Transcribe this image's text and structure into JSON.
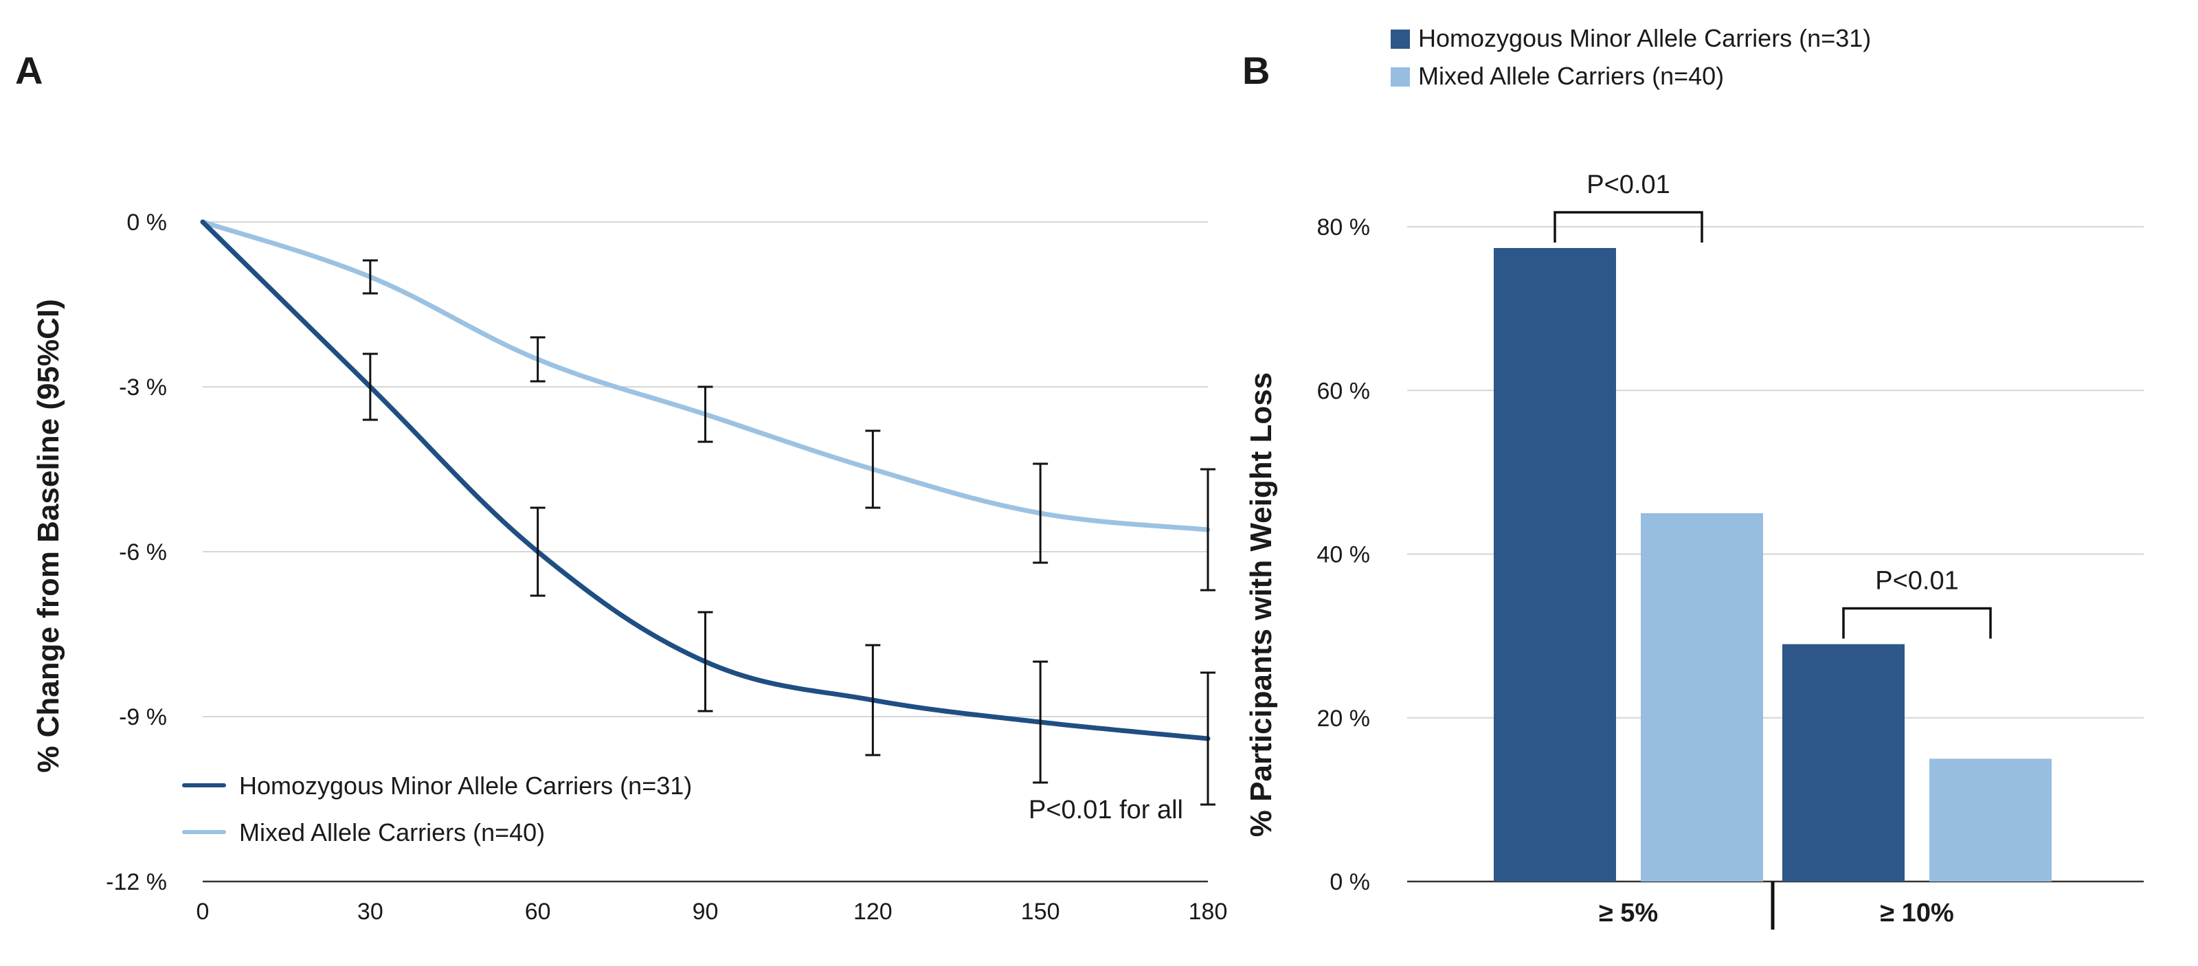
{
  "chart_data": [
    {
      "panel": "A",
      "type": "line",
      "ylabel": "% Change from Baseline (95%CI)",
      "xlabel": "",
      "x": [
        0,
        30,
        60,
        90,
        120,
        150,
        180
      ],
      "x_ticks": [
        "0",
        "30",
        "60",
        "90",
        "120",
        "150",
        "180"
      ],
      "ylim": [
        -12,
        0
      ],
      "y_ticks": [
        "0 %",
        "-3 %",
        "-6 %",
        "-9 %",
        "-12 %"
      ],
      "y_tick_values": [
        0,
        -3,
        -6,
        -9,
        -12
      ],
      "grid": true,
      "legend_position": "bottom-left",
      "series": [
        {
          "name": "Homozygous Minor Allele Carriers (n=31)",
          "color": "#1f4e82",
          "values": [
            0,
            -3.0,
            -6.0,
            -8.0,
            -8.7,
            -9.1,
            -9.4
          ],
          "ci_low": [
            null,
            -3.6,
            -6.8,
            -8.9,
            -9.7,
            -10.2,
            -10.6
          ],
          "ci_high": [
            null,
            -2.4,
            -5.2,
            -7.1,
            -7.7,
            -8.0,
            -8.2
          ]
        },
        {
          "name": "Mixed Allele Carriers (n=40)",
          "color": "#9cc2e2",
          "values": [
            0,
            -1.0,
            -2.5,
            -3.5,
            -4.5,
            -5.3,
            -5.6
          ],
          "ci_low": [
            null,
            -1.3,
            -2.9,
            -4.0,
            -5.2,
            -6.2,
            -6.7
          ],
          "ci_high": [
            null,
            -0.7,
            -2.1,
            -3.0,
            -3.8,
            -4.4,
            -4.5
          ]
        }
      ],
      "annotations": [
        "P<0.01 for all"
      ]
    },
    {
      "panel": "B",
      "type": "bar",
      "ylabel": "% Participants with Weight Loss",
      "xlabel": "",
      "categories": [
        "≥ 5%",
        "≥ 10%"
      ],
      "ylim": [
        0,
        80
      ],
      "y_ticks": [
        "0 %",
        "20 %",
        "40 %",
        "60 %",
        "80 %"
      ],
      "y_tick_values": [
        0,
        20,
        40,
        60,
        80
      ],
      "grid": true,
      "legend_position": "top",
      "series": [
        {
          "name": "Homozygous Minor Allele Carriers (n=31)",
          "color": "#2d5789",
          "values": [
            77.4,
            29.0
          ]
        },
        {
          "name": "Mixed Allele Carriers (n=40)",
          "color": "#97bde0",
          "values": [
            45.0,
            15.0
          ]
        }
      ],
      "annotations": [
        "P<0.01",
        "P<0.01"
      ]
    }
  ]
}
